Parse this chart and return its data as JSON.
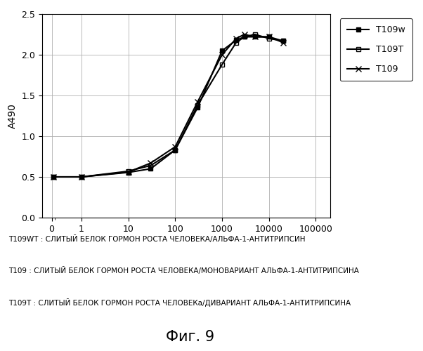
{
  "title": "",
  "xlabel": "",
  "ylabel": "A490",
  "ylim": [
    0.0,
    2.5
  ],
  "yticks": [
    0.0,
    0.5,
    1.0,
    1.5,
    2.0,
    2.5
  ],
  "xtick_vals": [
    0,
    1,
    10,
    100,
    1000,
    10000,
    100000
  ],
  "xtick_labels": [
    "0",
    "1",
    "10",
    "100",
    "1000",
    "10000",
    "100000"
  ],
  "series": {
    "T109w": {
      "x": [
        0.05,
        1,
        10,
        30,
        100,
        300,
        1000,
        2000,
        3000,
        5000,
        10000,
        20000
      ],
      "y": [
        0.5,
        0.5,
        0.555,
        0.6,
        0.83,
        1.35,
        2.05,
        2.18,
        2.22,
        2.22,
        2.22,
        2.17
      ],
      "marker": "s",
      "fillstyle": "full",
      "color": "#000000",
      "linewidth": 1.5,
      "markersize": 5,
      "label": "T109w"
    },
    "T109T": {
      "x": [
        0.05,
        1,
        10,
        30,
        100,
        300,
        1000,
        2000,
        3000,
        5000,
        10000,
        20000
      ],
      "y": [
        0.5,
        0.5,
        0.57,
        0.64,
        0.83,
        1.38,
        1.88,
        2.15,
        2.22,
        2.25,
        2.2,
        2.17
      ],
      "marker": "s",
      "fillstyle": "none",
      "color": "#000000",
      "linewidth": 1.5,
      "markersize": 5,
      "label": "T109T"
    },
    "T109": {
      "x": [
        0.05,
        1,
        10,
        30,
        100,
        300,
        1000,
        2000,
        3000,
        5000,
        10000,
        20000
      ],
      "y": [
        0.5,
        0.5,
        0.56,
        0.67,
        0.87,
        1.42,
        2.0,
        2.2,
        2.25,
        2.22,
        2.22,
        2.15
      ],
      "marker": "x",
      "fillstyle": "full",
      "color": "#000000",
      "linewidth": 1.5,
      "markersize": 6,
      "label": "T109"
    }
  },
  "annotations": [
    "T109WT : СЛИТЫЙ БЕЛОК ГОРМОН РОСТА ЧЕЛОВЕКА/АЛЬФА-1-АНТИТРИПСИН",
    "T109 : СЛИТЫЙ БЕЛОК ГОРМОН РОСТА ЧЕЛОВЕКА/МОНОВАРИАНТ АЛЬФА-1-АНТИТРИПСИНА",
    "T109T : СЛИТЫЙ БЕЛОК ГОРМОН РОСТА ЧЕЛОВЕКа/ДИВАРИАНТ АЛЬФА-1-АНТИТРИПСИНА"
  ],
  "fig_title": "Фиг. 9",
  "background_color": "#ffffff",
  "grid_color": "#b0b0b0"
}
